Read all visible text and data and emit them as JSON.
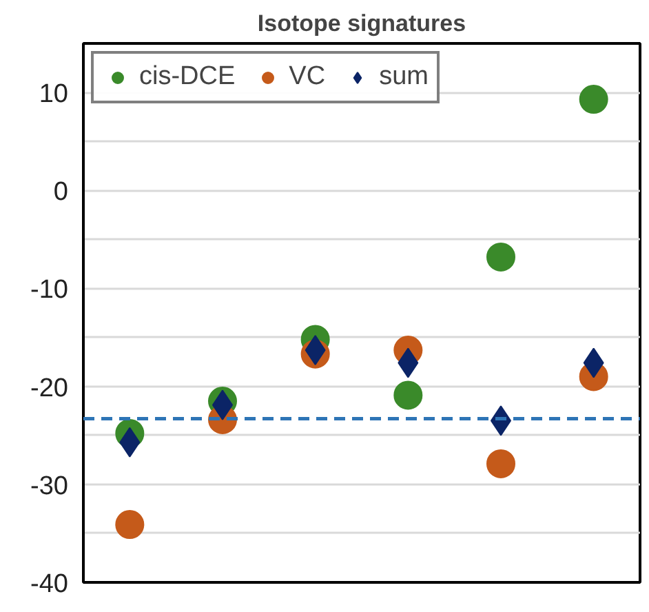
{
  "chart_data": {
    "type": "scatter",
    "title": "Isotope signatures",
    "categories": [
      null,
      null,
      null,
      null,
      null,
      null
    ],
    "series": [
      {
        "name": "cis-DCE",
        "color": "#3a8a2a",
        "marker": "circle",
        "values": [
          -24.8,
          -21.5,
          -15.2,
          -20.9,
          -6.8,
          9.3
        ]
      },
      {
        "name": "VC",
        "color": "#c55a1a",
        "marker": "circle",
        "values": [
          -34.1,
          -23.4,
          -16.7,
          -16.3,
          -27.9,
          -19.0
        ]
      },
      {
        "name": "sum",
        "color": "#0b2466",
        "marker": "diamond",
        "values": [
          -25.7,
          -21.9,
          -16.3,
          -17.6,
          -23.5,
          -17.6
        ]
      }
    ],
    "ylim": [
      -40,
      15
    ],
    "yticks": [
      -40,
      {
        "value": -35,
        "label": null
      },
      -30,
      {
        "value": -25,
        "label": null
      },
      -20,
      {
        "value": -15,
        "label": null
      },
      -10,
      {
        "value": -5,
        "label": null
      },
      0,
      {
        "value": 5,
        "label": null
      },
      10,
      {
        "value": 15,
        "label": null
      }
    ],
    "ref_lines": [
      {
        "axis": "y",
        "value": -23.3,
        "color": "#2e75b6",
        "line_style": "dashed"
      }
    ],
    "grid": "y",
    "legend": "top left",
    "tick_labels": "y"
  }
}
